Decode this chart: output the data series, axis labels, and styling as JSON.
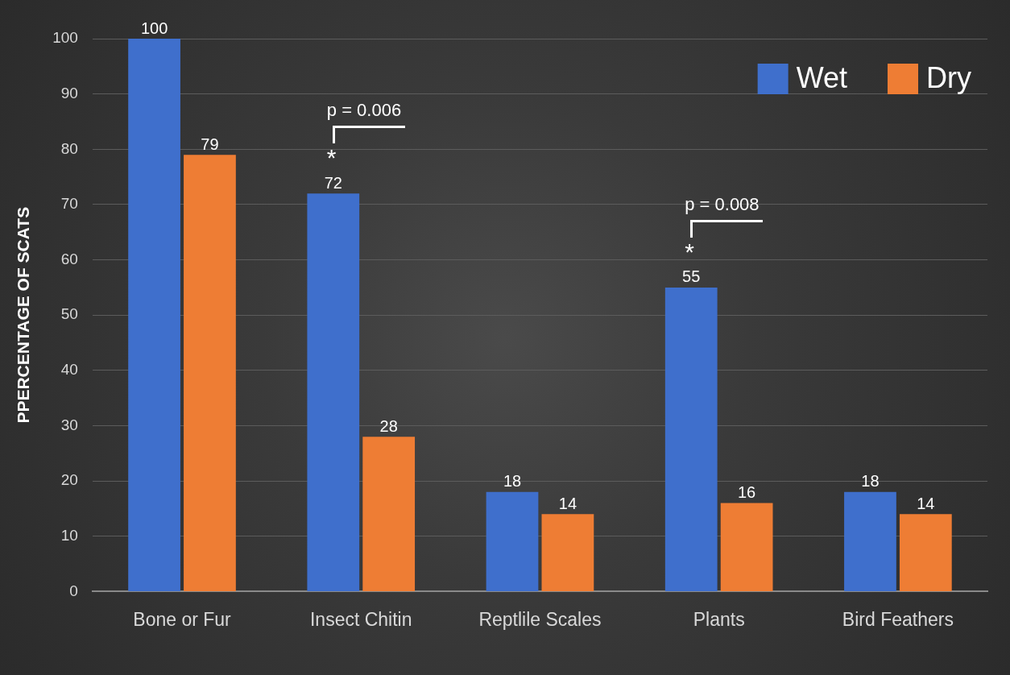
{
  "chart_data": {
    "type": "bar",
    "ylabel": "PPERCENTAGE OF SCATS",
    "categories": [
      "Bone or Fur",
      "Insect Chitin",
      "Reptlile Scales",
      "Plants",
      "Bird Feathers"
    ],
    "series": [
      {
        "name": "Wet",
        "color": "#3f6fcc",
        "values": [
          100,
          72,
          18,
          55,
          18
        ]
      },
      {
        "name": "Dry",
        "color": "#ee7d34",
        "values": [
          79,
          28,
          14,
          16,
          14
        ]
      }
    ],
    "ylim": [
      0,
      100
    ],
    "yticks": [
      0,
      10,
      20,
      30,
      40,
      50,
      60,
      70,
      80,
      90,
      100
    ],
    "grid": "y",
    "legend": "top right",
    "data_labels": true,
    "annotations": [
      "*",
      "p = 0.006",
      "*",
      "p = 0.008"
    ]
  }
}
